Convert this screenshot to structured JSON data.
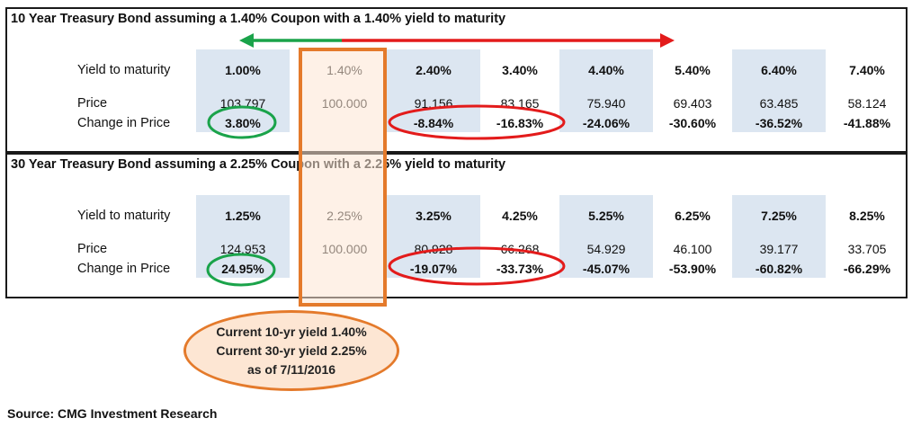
{
  "tables": [
    {
      "title": "10 Year Treasury Bond assuming a 1.40% Coupon with a 1.40% yield to maturity",
      "row_labels": {
        "yield": "Yield to maturity",
        "price": "Price",
        "change": "Change in Price"
      },
      "yields": [
        "1.00%",
        "1.40%",
        "2.40%",
        "3.40%",
        "4.40%",
        "5.40%",
        "6.40%",
        "7.40%"
      ],
      "prices": [
        "103.797",
        "100.000",
        "91.156",
        "83.165",
        "75.940",
        "69.403",
        "63.485",
        "58.124"
      ],
      "changes": [
        "3.80%",
        "",
        "-8.84%",
        "-16.83%",
        "-24.06%",
        "-30.60%",
        "-36.52%",
        "-41.88%"
      ]
    },
    {
      "title": "30 Year Treasury Bond assuming a 2.25% Coupon with a 2.25% yield to maturity",
      "row_labels": {
        "yield": "Yield to maturity",
        "price": "Price",
        "change": "Change in Price"
      },
      "yields": [
        "1.25%",
        "2.25%",
        "3.25%",
        "4.25%",
        "5.25%",
        "6.25%",
        "7.25%",
        "8.25%"
      ],
      "prices": [
        "124.953",
        "100.000",
        "80.928",
        "66.268",
        "54.929",
        "46.100",
        "39.177",
        "33.705"
      ],
      "changes": [
        "24.95%",
        "",
        "-19.07%",
        "-33.73%",
        "-45.07%",
        "-53.90%",
        "-60.82%",
        "-66.29%"
      ]
    }
  ],
  "callout": {
    "line1": "Current 10-yr yield 1.40%",
    "line2": "Current 30-yr yield 2.25%",
    "line3": "as of 7/11/2016"
  },
  "source": "Source:  CMG Investment Research",
  "colors": {
    "shade": "#dce6f1",
    "highlight_orange": "#e47a2b",
    "highlight_fill": "#fde6d3",
    "green": "#1aa34a",
    "red": "#e31b1b"
  }
}
